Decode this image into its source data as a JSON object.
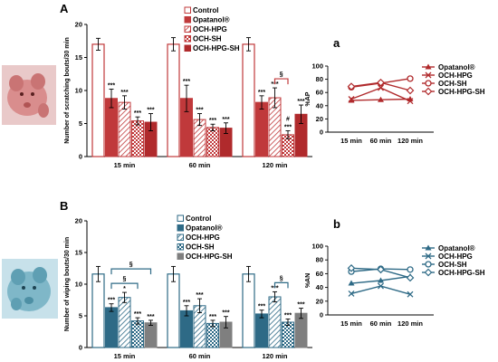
{
  "colors": {
    "red": "#c0393b",
    "red_dark": "#b02a2c",
    "blue": "#2e6a86",
    "blue_dark": "#215570",
    "gray": "#7f7f7f",
    "photo_red": "#d98d8d",
    "photo_blue": "#7fb7c8"
  },
  "panels": {
    "A": "A",
    "B": "B",
    "a": "a",
    "b": "b"
  },
  "photos": {
    "A": "red-tinted-rat-photo",
    "B": "blue-tinted-rat-photo"
  },
  "chart_data": [
    {
      "id": "A",
      "type": "bar",
      "ylabel": "Number of scratching bouts/30 min",
      "ylim": [
        0,
        20
      ],
      "yticks": [
        0,
        5,
        10,
        15,
        20
      ],
      "categories": [
        "15 min",
        "60 min",
        "120 min"
      ],
      "legend_placement": "top-center",
      "series": [
        {
          "name": "Control",
          "style": "outline",
          "values": [
            17.0,
            17.0,
            17.0
          ],
          "errors": [
            0.9,
            1.0,
            1.0
          ],
          "marks": [
            "",
            "",
            ""
          ]
        },
        {
          "name": "Opatanol®",
          "style": "solid",
          "values": [
            8.8,
            8.8,
            8.2
          ],
          "errors": [
            1.4,
            2.0,
            1.0
          ],
          "marks": [
            "***",
            "***",
            "***"
          ]
        },
        {
          "name": "OCH-HPG",
          "style": "hatch",
          "values": [
            8.2,
            5.6,
            8.9
          ],
          "errors": [
            1.0,
            0.9,
            1.5
          ],
          "marks": [
            "***",
            "***",
            "***"
          ]
        },
        {
          "name": "OCH-SH",
          "style": "check",
          "values": [
            5.4,
            4.4,
            3.3
          ],
          "errors": [
            0.6,
            0.5,
            0.6
          ],
          "marks": [
            "***",
            "***",
            "***"
          ]
        },
        {
          "name": "OCH-HPG-SH",
          "style": "solid",
          "values": [
            5.2,
            4.3,
            6.4
          ],
          "errors": [
            1.3,
            0.8,
            1.4
          ],
          "marks": [
            "***",
            "***",
            "***"
          ]
        }
      ],
      "extra_marks": [
        {
          "category": "120 min",
          "series": "OCH-SH",
          "text": "#"
        }
      ],
      "brackets": [
        {
          "category": "120 min",
          "from": "OCH-HPG",
          "to": "OCH-SH",
          "label": "§"
        }
      ]
    },
    {
      "id": "a",
      "type": "line",
      "ylabel": "%AP",
      "ylim": [
        0,
        100
      ],
      "yticks": [
        0,
        20,
        40,
        60,
        80,
        100
      ],
      "categories": [
        "15 min",
        "60 min",
        "120 min"
      ],
      "legend_placement": "top-right",
      "series": [
        {
          "name": "Opatanol®",
          "marker": "triangle",
          "values": [
            48,
            49,
            50
          ]
        },
        {
          "name": "OCH-HPG",
          "marker": "x",
          "values": [
            50,
            67,
            47
          ]
        },
        {
          "name": "OCH-SH",
          "marker": "circle",
          "values": [
            68,
            74,
            81
          ]
        },
        {
          "name": "OCH-HPG-SH",
          "marker": "diamond",
          "values": [
            69,
            75,
            63
          ]
        }
      ]
    },
    {
      "id": "B",
      "type": "bar",
      "ylabel": "Number of wiping bouts/30 min",
      "ylim": [
        0,
        20
      ],
      "yticks": [
        0,
        5,
        10,
        15,
        20
      ],
      "categories": [
        "15 min",
        "60 min",
        "120 min"
      ],
      "legend_placement": "top-center",
      "series": [
        {
          "name": "Control",
          "style": "outline",
          "values": [
            11.6,
            11.6,
            11.6
          ],
          "errors": [
            1.2,
            1.2,
            1.2
          ],
          "marks": [
            "",
            "",
            ""
          ]
        },
        {
          "name": "Opatanol®",
          "style": "solid",
          "values": [
            6.3,
            5.8,
            5.3
          ],
          "errors": [
            0.6,
            0.8,
            0.6
          ],
          "marks": [
            "***",
            "***",
            "***"
          ]
        },
        {
          "name": "OCH-HPG",
          "style": "hatch",
          "values": [
            7.9,
            6.6,
            8.0
          ],
          "errors": [
            0.8,
            1.1,
            0.8
          ],
          "marks": [
            "*",
            "***",
            "***"
          ]
        },
        {
          "name": "OCH-SH",
          "style": "check",
          "values": [
            4.2,
            3.8,
            4.0
          ],
          "errors": [
            0.5,
            0.5,
            0.5
          ],
          "marks": [
            "***",
            "***",
            "***"
          ]
        },
        {
          "name": "OCH-HPG-SH",
          "style": "solid",
          "values": [
            3.9,
            4.0,
            5.4
          ],
          "errors": [
            0.4,
            0.9,
            0.8
          ],
          "marks": [
            "***",
            "***",
            "***"
          ]
        }
      ],
      "brackets": [
        {
          "category": "15 min",
          "from": "Opatanol®",
          "to": "OCH-HPG-SH",
          "label": "§",
          "level": 2
        },
        {
          "category": "15 min",
          "from": "Opatanol®",
          "to": "OCH-SH",
          "label": "§",
          "level": 1
        },
        {
          "category": "120 min",
          "from": "OCH-HPG",
          "to": "OCH-SH",
          "label": "§",
          "level": 1
        }
      ]
    },
    {
      "id": "b",
      "type": "line",
      "ylabel": "%AN",
      "ylim": [
        0,
        100
      ],
      "yticks": [
        0,
        20,
        40,
        60,
        80,
        100
      ],
      "categories": [
        "15 min",
        "60 min",
        "120 min"
      ],
      "legend_placement": "top-right",
      "series": [
        {
          "name": "Opatanol®",
          "marker": "triangle",
          "values": [
            46,
            50,
            56
          ]
        },
        {
          "name": "OCH-HPG",
          "marker": "x",
          "values": [
            31,
            42,
            30
          ]
        },
        {
          "name": "OCH-SH",
          "marker": "circle",
          "values": [
            63,
            67,
            66
          ]
        },
        {
          "name": "OCH-HPG-SH",
          "marker": "diamond",
          "values": [
            68,
            66,
            54
          ]
        }
      ]
    }
  ]
}
